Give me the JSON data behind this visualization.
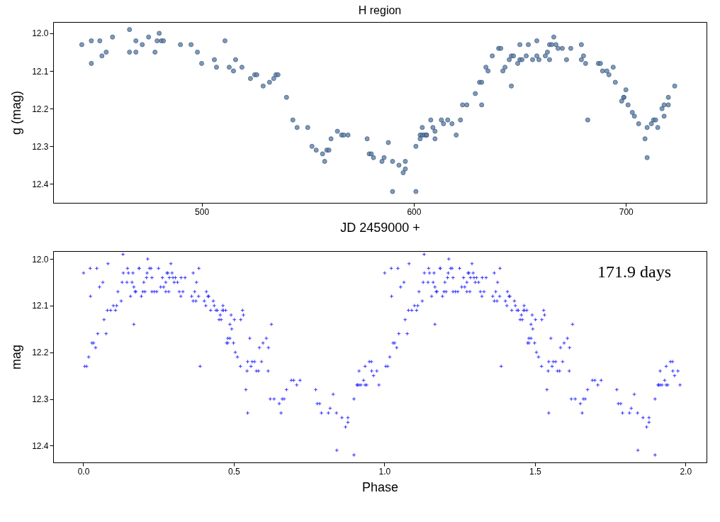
{
  "chart_data": [
    {
      "type": "scatter",
      "title": "H region",
      "xlabel": "JD  2459000 +",
      "ylabel": "g (mag)",
      "color": "#5f82aa",
      "marker": "circle",
      "xlim": [
        430,
        738
      ],
      "xticks": [
        500,
        600,
        700
      ],
      "ylim": [
        12.45,
        11.97
      ],
      "yticks": [
        {
          "value": 12,
          "label": "12.0"
        },
        12.1,
        12.2,
        12.3,
        12.4
      ],
      "x": [
        443.5,
        448,
        448,
        452,
        453,
        455,
        458,
        466,
        466,
        469,
        469,
        472,
        475,
        478,
        480,
        479,
        481,
        482,
        490,
        495,
        498,
        500,
        506,
        507,
        511,
        513,
        515,
        516,
        519,
        523,
        525,
        526,
        529,
        532,
        534,
        535,
        536,
        540,
        543,
        545,
        550,
        552,
        554,
        557,
        558,
        559,
        560,
        561,
        564,
        566,
        567,
        569,
        578,
        579,
        580,
        581,
        585,
        586,
        588,
        590,
        590,
        593,
        595,
        596,
        596,
        601,
        601,
        603,
        603,
        604,
        604,
        605,
        606,
        606,
        608,
        609,
        610,
        610,
        613,
        614,
        616,
        618,
        620,
        622,
        623,
        625,
        629,
        631,
        632,
        632,
        634,
        635,
        637,
        640,
        641,
        642,
        643,
        645,
        646,
        646,
        647,
        649,
        650,
        650,
        651,
        653,
        654,
        656,
        658,
        658,
        659,
        662,
        663,
        664,
        664,
        665,
        666,
        667,
        668,
        670,
        672,
        674,
        679,
        679,
        680,
        681,
        682,
        687,
        688,
        689,
        691,
        692,
        694,
        695,
        698,
        699,
        699,
        700,
        701,
        703,
        704,
        706,
        709,
        710,
        710,
        712,
        713,
        714,
        715,
        717,
        718,
        718,
        720,
        720,
        723
      ],
      "values": [
        12.03,
        12.08,
        12.02,
        12.02,
        12.06,
        12.05,
        12.01,
        11.99,
        12.05,
        12.02,
        12.05,
        12.03,
        12.01,
        12.05,
        12.0,
        12.02,
        12.02,
        12.02,
        12.03,
        12.03,
        12.05,
        12.08,
        12.07,
        12.09,
        12.02,
        12.09,
        12.1,
        12.07,
        12.09,
        12.12,
        12.11,
        12.11,
        12.14,
        12.13,
        12.12,
        12.11,
        12.11,
        12.17,
        12.23,
        12.25,
        12.25,
        12.3,
        12.31,
        12.32,
        12.34,
        12.31,
        12.31,
        12.28,
        12.26,
        12.27,
        12.27,
        12.27,
        12.28,
        12.32,
        12.32,
        12.33,
        12.34,
        12.33,
        12.29,
        12.42,
        12.34,
        12.35,
        12.37,
        12.34,
        12.36,
        12.3,
        12.42,
        12.27,
        12.28,
        12.25,
        12.27,
        12.27,
        12.27,
        12.27,
        12.23,
        12.25,
        12.26,
        12.28,
        12.23,
        12.24,
        12.23,
        12.24,
        12.27,
        12.23,
        12.19,
        12.19,
        12.16,
        12.13,
        12.13,
        12.19,
        12.09,
        12.1,
        12.06,
        12.04,
        12.04,
        12.1,
        12.09,
        12.07,
        12.06,
        12.14,
        12.06,
        12.08,
        12.03,
        12.07,
        12.07,
        12.06,
        12.03,
        12.07,
        12.06,
        12.02,
        12.07,
        12.06,
        12.05,
        12.07,
        12.03,
        12.03,
        12.01,
        12.03,
        12.04,
        12.04,
        12.07,
        12.04,
        12.07,
        12.03,
        12.06,
        12.08,
        12.23,
        12.08,
        12.08,
        12.1,
        12.1,
        12.11,
        12.09,
        12.13,
        12.18,
        12.17,
        12.17,
        12.15,
        12.19,
        12.21,
        12.22,
        12.24,
        12.28,
        12.25,
        12.33,
        12.24,
        12.23,
        12.23,
        12.25,
        12.2,
        12.22,
        12.19,
        12.17,
        12.19,
        12.14
      ]
    },
    {
      "type": "scatter",
      "xlabel": "Phase",
      "ylabel": "mag",
      "color": "#3333ff",
      "marker": "cross",
      "annotations": [
        "171.9 days"
      ],
      "xlim": [
        -0.1,
        2.07
      ],
      "xticks": [
        {
          "value": 0,
          "label": "0.0"
        },
        0.5,
        {
          "value": 1,
          "label": "1.0"
        },
        1.5,
        {
          "value": 2,
          "label": "2.0"
        }
      ],
      "ylim": [
        12.436,
        11.983
      ],
      "yticks": [
        {
          "value": 12,
          "label": "12.0"
        },
        12.1,
        12.2,
        12.3,
        12.4
      ],
      "x": [
        0.001,
        0.005,
        0.011,
        0.018,
        0.023,
        0.024,
        0.029,
        0.034,
        0.041,
        0.045,
        0.048,
        0.054,
        0.065,
        0.069,
        0.076,
        0.082,
        0.08,
        0.091,
        0.1,
        0.107,
        0.111,
        0.115,
        0.126,
        0.129,
        0.132,
        0.133,
        0.145,
        0.147,
        0.15,
        0.157,
        0.162,
        0.165,
        0.168,
        0.168,
        0.172,
        0.175,
        0.185,
        0.186,
        0.193,
        0.198,
        0.201,
        0.205,
        0.21,
        0.212,
        0.214,
        0.22,
        0.225,
        0.228,
        0.228,
        0.236,
        0.244,
        0.25,
        0.257,
        0.263,
        0.267,
        0.274,
        0.274,
        0.278,
        0.281,
        0.284,
        0.286,
        0.291,
        0.295,
        0.298,
        0.302,
        0.306,
        0.313,
        0.319,
        0.324,
        0.325,
        0.331,
        0.338,
        0.36,
        0.365,
        0.365,
        0.37,
        0.374,
        0.376,
        0.383,
        0.384,
        0.388,
        0.402,
        0.407,
        0.409,
        0.414,
        0.417,
        0.423,
        0.432,
        0.435,
        0.441,
        0.445,
        0.451,
        0.455,
        0.458,
        0.462,
        0.464,
        0.466,
        0.473,
        0.476,
        0.48,
        0.48,
        0.487,
        0.487,
        0.491,
        0.493,
        0.499,
        0.502,
        0.505,
        0.512,
        0.522,
        0.523,
        0.529,
        0.532,
        0.54,
        0.544,
        0.546,
        0.546,
        0.553,
        0.557,
        0.561,
        0.569,
        0.575,
        0.582,
        0.585,
        0.592,
        0.597,
        0.608,
        0.614,
        0.615,
        0.621,
        0.625,
        0.634,
        0.651,
        0.657,
        0.661,
        0.667,
        0.675,
        0.691,
        0.699,
        0.709,
        0.72,
        0.772,
        0.777,
        0.785,
        0.791,
        0.814,
        0.82,
        0.83,
        0.841,
        0.842,
        0.859,
        0.871,
        0.879,
        0.879,
        0.899,
        0.899,
        0.909,
        0.911,
        0.916,
        0.916,
        0.922,
        0.931,
        0.936,
        0.936,
        0.941,
        0.95,
        0.957,
        0.958,
        0.964,
        0.975,
        0.982,
        1.001,
        1.005,
        1.011,
        1.018,
        1.023,
        1.024,
        1.029,
        1.034,
        1.041,
        1.045,
        1.048,
        1.054,
        1.065,
        1.069,
        1.076,
        1.082,
        1.08,
        1.091,
        1.1,
        1.107,
        1.111,
        1.115,
        1.126,
        1.129,
        1.132,
        1.133,
        1.145,
        1.147,
        1.15,
        1.157,
        1.162,
        1.165,
        1.168,
        1.168,
        1.172,
        1.175,
        1.185,
        1.186,
        1.193,
        1.198,
        1.201,
        1.205,
        1.21,
        1.212,
        1.214,
        1.22,
        1.225,
        1.228,
        1.228,
        1.236,
        1.244,
        1.25,
        1.257,
        1.263,
        1.267,
        1.274,
        1.274,
        1.278,
        1.281,
        1.284,
        1.286,
        1.291,
        1.295,
        1.298,
        1.302,
        1.306,
        1.313,
        1.319,
        1.324,
        1.325,
        1.331,
        1.338,
        1.36,
        1.365,
        1.365,
        1.37,
        1.374,
        1.376,
        1.383,
        1.384,
        1.388,
        1.402,
        1.407,
        1.409,
        1.414,
        1.417,
        1.423,
        1.432,
        1.435,
        1.441,
        1.445,
        1.451,
        1.455,
        1.458,
        1.462,
        1.464,
        1.466,
        1.473,
        1.476,
        1.48,
        1.48,
        1.487,
        1.487,
        1.491,
        1.493,
        1.499,
        1.502,
        1.505,
        1.512,
        1.522,
        1.523,
        1.529,
        1.532,
        1.54,
        1.544,
        1.546,
        1.546,
        1.553,
        1.557,
        1.561,
        1.569,
        1.575,
        1.582,
        1.585,
        1.592,
        1.597,
        1.608,
        1.614,
        1.615,
        1.621,
        1.625,
        1.634,
        1.651,
        1.657,
        1.661,
        1.667,
        1.675,
        1.691,
        1.699,
        1.709,
        1.72,
        1.772,
        1.777,
        1.785,
        1.791,
        1.814,
        1.82,
        1.83,
        1.841,
        1.842,
        1.859,
        1.871,
        1.879,
        1.879,
        1.899,
        1.899,
        1.909,
        1.911,
        1.916,
        1.916,
        1.922,
        1.931,
        1.936,
        1.936,
        1.941,
        1.95,
        1.957,
        1.958,
        1.964,
        1.975,
        1.982
      ],
      "values": [
        12.03,
        12.23,
        12.23,
        12.21,
        12.02,
        12.08,
        12.18,
        12.18,
        12.19,
        12.02,
        12.16,
        12.06,
        12.05,
        12.13,
        12.16,
        12.01,
        12.11,
        12.11,
        12.1,
        12.11,
        12.1,
        12.07,
        12.09,
        12.05,
        11.99,
        12.03,
        12.05,
        12.02,
        12.03,
        12.08,
        12.05,
        12.03,
        12.14,
        12.06,
        12.07,
        12.07,
        12.02,
        12.02,
        12.08,
        12.07,
        12.05,
        12.07,
        12.04,
        12.03,
        12.0,
        12.02,
        12.02,
        12.04,
        12.07,
        12.07,
        12.07,
        12.02,
        12.06,
        12.04,
        12.06,
        12.07,
        12.05,
        12.03,
        12.03,
        12.07,
        12.04,
        12.01,
        12.03,
        12.04,
        12.05,
        12.04,
        12.05,
        12.07,
        12.08,
        12.04,
        12.07,
        12.04,
        12.08,
        12.09,
        12.03,
        12.07,
        12.09,
        12.05,
        12.08,
        12.02,
        12.23,
        12.09,
        12.1,
        12.07,
        12.08,
        12.08,
        12.11,
        12.09,
        12.1,
        12.11,
        12.11,
        12.13,
        12.12,
        12.13,
        12.11,
        12.1,
        12.11,
        12.11,
        12.18,
        12.17,
        12.18,
        12.14,
        12.17,
        12.12,
        12.15,
        12.18,
        12.13,
        12.2,
        12.21,
        12.23,
        12.13,
        12.11,
        12.12,
        12.28,
        12.24,
        12.22,
        12.33,
        12.17,
        12.23,
        12.22,
        12.22,
        12.24,
        12.24,
        12.19,
        12.22,
        12.18,
        12.17,
        12.24,
        12.19,
        12.3,
        12.14,
        12.3,
        12.31,
        12.33,
        12.3,
        12.3,
        12.28,
        12.26,
        12.26,
        12.27,
        12.26,
        12.28,
        12.31,
        12.31,
        12.33,
        12.33,
        12.32,
        12.29,
        12.33,
        12.41,
        12.34,
        12.36,
        12.35,
        12.34,
        12.3,
        12.42,
        12.27,
        12.27,
        12.24,
        12.27,
        12.27,
        12.26,
        12.27,
        12.23,
        12.27,
        12.22,
        12.22,
        12.24,
        12.25,
        12.24,
        12.27,
        12.03,
        12.23,
        12.23,
        12.21,
        12.02,
        12.08,
        12.18,
        12.18,
        12.19,
        12.02,
        12.16,
        12.06,
        12.05,
        12.13,
        12.16,
        12.01,
        12.11,
        12.11,
        12.1,
        12.11,
        12.1,
        12.07,
        12.09,
        12.05,
        11.99,
        12.03,
        12.05,
        12.02,
        12.03,
        12.08,
        12.05,
        12.03,
        12.14,
        12.06,
        12.07,
        12.07,
        12.02,
        12.02,
        12.08,
        12.07,
        12.05,
        12.07,
        12.04,
        12.03,
        12.0,
        12.02,
        12.02,
        12.04,
        12.07,
        12.07,
        12.07,
        12.02,
        12.06,
        12.04,
        12.06,
        12.07,
        12.05,
        12.03,
        12.03,
        12.07,
        12.04,
        12.01,
        12.03,
        12.04,
        12.05,
        12.04,
        12.05,
        12.07,
        12.08,
        12.04,
        12.07,
        12.04,
        12.08,
        12.09,
        12.03,
        12.07,
        12.09,
        12.05,
        12.08,
        12.02,
        12.23,
        12.09,
        12.1,
        12.07,
        12.08,
        12.08,
        12.11,
        12.09,
        12.1,
        12.11,
        12.11,
        12.13,
        12.12,
        12.13,
        12.11,
        12.1,
        12.11,
        12.11,
        12.18,
        12.17,
        12.18,
        12.14,
        12.17,
        12.12,
        12.15,
        12.18,
        12.13,
        12.2,
        12.21,
        12.23,
        12.13,
        12.11,
        12.12,
        12.28,
        12.24,
        12.22,
        12.33,
        12.17,
        12.23,
        12.22,
        12.22,
        12.24,
        12.24,
        12.19,
        12.22,
        12.18,
        12.17,
        12.24,
        12.19,
        12.3,
        12.14,
        12.3,
        12.31,
        12.33,
        12.3,
        12.3,
        12.28,
        12.26,
        12.26,
        12.27,
        12.26,
        12.28,
        12.31,
        12.31,
        12.33,
        12.33,
        12.32,
        12.29,
        12.33,
        12.41,
        12.34,
        12.36,
        12.35,
        12.34,
        12.3,
        12.42,
        12.27,
        12.27,
        12.24,
        12.27,
        12.27,
        12.26,
        12.27,
        12.23,
        12.27,
        12.22,
        12.22,
        12.24,
        12.25,
        12.24,
        12.27
      ]
    }
  ]
}
